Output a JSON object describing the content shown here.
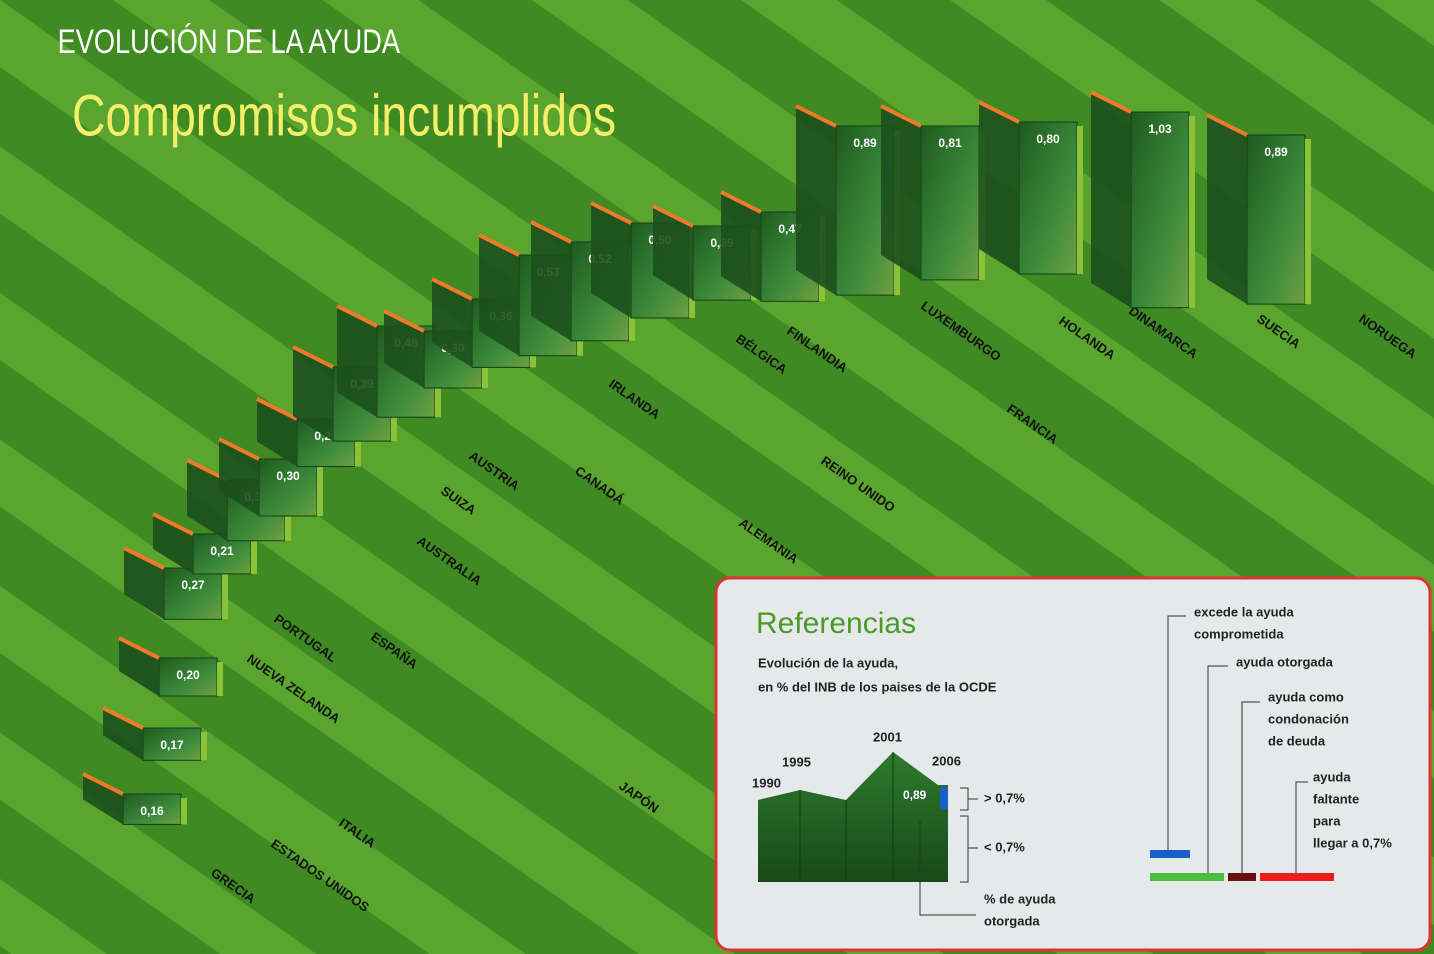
{
  "header": {
    "kicker": "EVOLUCIÓN DE LA AYUDA",
    "title": "Compromisos incumplidos"
  },
  "chart_data": {
    "type": "panels",
    "categories": [
      "GRECIA",
      "ESTADOS UNIDOS",
      "ITALIA",
      "NUEVA ZELANDA",
      "PORTUGAL",
      "ESPAÑA",
      "AUSTRALIA",
      "JAPÓN",
      "SUIZA",
      "AUSTRIA",
      "CANADÁ",
      "ALEMANIA",
      "IRLANDA",
      "REINO UNIDO",
      "BÉLGICA",
      "FINLANDIA",
      "FRANCIA",
      "LUXEMBURGO",
      "HOLANDA",
      "DINAMARCA",
      "SUECIA",
      "NORUEGA"
    ],
    "values": [
      0.16,
      0.17,
      0.2,
      0.27,
      0.21,
      0.32,
      0.3,
      0.25,
      0.39,
      0.48,
      0.3,
      0.36,
      0.53,
      0.52,
      0.5,
      0.39,
      0.47,
      0.89,
      0.81,
      0.8,
      1.03,
      0.89
    ],
    "value_labels": [
      "0,16",
      "0,17",
      "0,20",
      "0,27",
      "0,21",
      "0,32",
      "0,30",
      "0,25",
      "0,39",
      "0,48",
      "0,30",
      "0,36",
      "0,53",
      "0,52",
      "0,50",
      "0,39",
      "0,47",
      "0,89",
      "0,81",
      "0,80",
      "1,03",
      "0,89"
    ]
  },
  "legend": {
    "title": "Referencias",
    "subtitle": [
      "Evolución de la ayuda,",
      "en % del INB de los paises de la OCDE"
    ],
    "years": [
      "1990",
      "1995",
      "2001",
      "2006"
    ],
    "sample_value": "0,89",
    "above": "> 0,7%",
    "below": "< 0,7%",
    "given_pct": [
      "% de ayuda",
      "otorgada"
    ],
    "exceeds": [
      "excede la ayuda",
      "comprometida"
    ],
    "given": [
      "ayuda otorgada"
    ],
    "debt": [
      "ayuda como",
      "condonación",
      "de deuda"
    ],
    "missing": [
      "ayuda",
      "faltante",
      "para",
      "llegar a 0,7%"
    ]
  }
}
